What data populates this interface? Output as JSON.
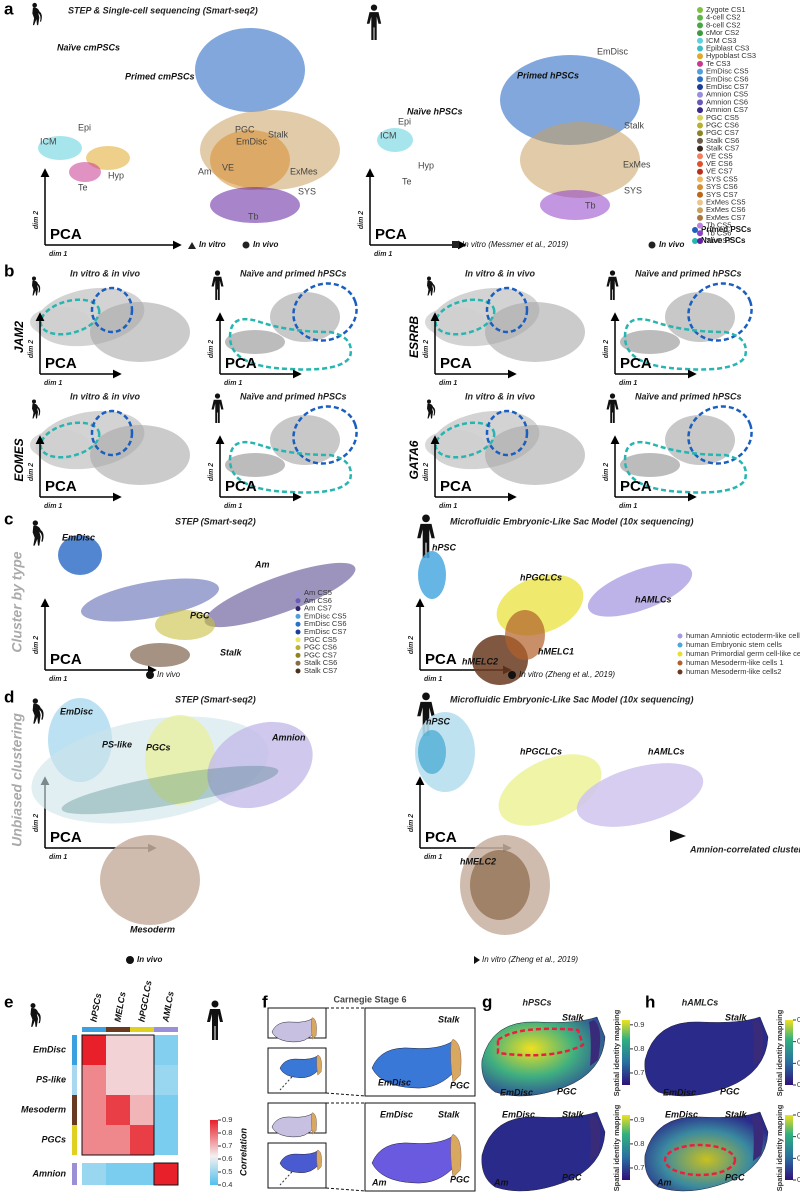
{
  "panel_a": {
    "letter": "a",
    "title": "STEP & Single-cell sequencing (Smart-seq2)",
    "left_labels": [
      "Naïve cmPSCs",
      "Primed cmPSCs",
      "EmDisc",
      "Epi",
      "ICM",
      "Hyp",
      "Te",
      "PGC",
      "Stalk",
      "Am",
      "VE",
      "ExMes",
      "SYS",
      "Tb"
    ],
    "right_labels": [
      "Naïve hPSCs",
      "Primed hPSCs",
      "EmDisc",
      "Epi",
      "ICM",
      "Hyp",
      "Te",
      "Stalk",
      "ExMes",
      "SYS",
      "Tb"
    ],
    "method": "PCA",
    "x_label": "dim 1",
    "y_label": "dim 2",
    "left_key": [
      "In vitro",
      "In vivo"
    ],
    "right_key": [
      "In vitro (Messmer et al., 2019)",
      "In vivo"
    ],
    "psc_legend": [
      {
        "name": "Primed PSCs",
        "color": "#1f5fbf"
      },
      {
        "name": "Naïve PSCs",
        "color": "#26b5b0"
      }
    ],
    "stage_legend": [
      {
        "name": "Zygote CS1",
        "color": "#7dc142"
      },
      {
        "name": "4-cell CS2",
        "color": "#5fb846"
      },
      {
        "name": "8-cell CS2",
        "color": "#48a845"
      },
      {
        "name": "cMor CS2",
        "color": "#3e9a3f"
      },
      {
        "name": "ICM CS3",
        "color": "#5fd0dc"
      },
      {
        "name": "Epiblast CS3",
        "color": "#3fbcc4"
      },
      {
        "name": "Hypoblast CS3",
        "color": "#e0a92a"
      },
      {
        "name": "Te CS3",
        "color": "#c7388f"
      },
      {
        "name": "EmDisc CS5",
        "color": "#4ea0e0"
      },
      {
        "name": "EmDisc CS6",
        "color": "#2a6fc8"
      },
      {
        "name": "EmDisc CS7",
        "color": "#1a3d9a"
      },
      {
        "name": "Amnion CS5",
        "color": "#9a90d8"
      },
      {
        "name": "Amnion CS6",
        "color": "#6a5ab8"
      },
      {
        "name": "Amnion CS7",
        "color": "#3a2a8a"
      },
      {
        "name": "PGC CS5",
        "color": "#d8d45a"
      },
      {
        "name": "PGC CS6",
        "color": "#b8b030"
      },
      {
        "name": "PGC CS7",
        "color": "#8a8520"
      },
      {
        "name": "Stalk CS6",
        "color": "#6a5a48"
      },
      {
        "name": "Stalk CS7",
        "color": "#3a2a1e"
      },
      {
        "name": "VE CS5",
        "color": "#f08060"
      },
      {
        "name": "VE CS6",
        "color": "#e0502a"
      },
      {
        "name": "VE CS7",
        "color": "#b83018"
      },
      {
        "name": "SYS CS5",
        "color": "#f0b860"
      },
      {
        "name": "SYS CS6",
        "color": "#d89030"
      },
      {
        "name": "SYS CS7",
        "color": "#b86818"
      },
      {
        "name": "ExMes CS5",
        "color": "#e8c890"
      },
      {
        "name": "ExMes CS6",
        "color": "#c8a060"
      },
      {
        "name": "ExMes CS7",
        "color": "#a87840"
      },
      {
        "name": "Tb CS5",
        "color": "#c080e0"
      },
      {
        "name": "Tb CS6",
        "color": "#9040c8"
      },
      {
        "name": "Tb CS7",
        "color": "#6020a0"
      }
    ]
  },
  "panel_b": {
    "letter": "b",
    "genes": [
      "JAM2",
      "ESRRB",
      "EOMES",
      "GATA6"
    ],
    "left_subtitle": "In vitro & in vivo",
    "right_subtitle": "Naïve and primed hPSCs"
  },
  "panel_c": {
    "letter": "c",
    "side_label": "Cluster by type",
    "left_title": "STEP (Smart-seq2)",
    "left_labels": [
      "EmDisc",
      "Am",
      "PGC",
      "Stalk"
    ],
    "left_legend": [
      {
        "name": "Am CS5",
        "color": "#9a90d8"
      },
      {
        "name": "Am CS6",
        "color": "#6a5ab8"
      },
      {
        "name": "Am CS7",
        "color": "#2e2470"
      },
      {
        "name": "EmDisc CS5",
        "color": "#4ea0e0"
      },
      {
        "name": "EmDisc CS6",
        "color": "#2a6fc8"
      },
      {
        "name": "EmDisc CS7",
        "color": "#1a3d9a"
      },
      {
        "name": "PGC CS5",
        "color": "#e8e860"
      },
      {
        "name": "PGC CS6",
        "color": "#b8b030"
      },
      {
        "name": "PGC CS7",
        "color": "#8a8520"
      },
      {
        "name": "Stalk CS6",
        "color": "#8a6a48"
      },
      {
        "name": "Stalk CS7",
        "color": "#4a321e"
      }
    ],
    "left_key": "In vivo",
    "right_title": "Microfluidic Embryonic-Like Sac Model (10x sequencing)",
    "right_labels": [
      "hPSC",
      "hPGCLCs",
      "hAMLCs",
      "hMELC2",
      "hMELC1"
    ],
    "right_legend": [
      {
        "name": "human Amniotic ectoderm-like cells",
        "color": "#a89ae0"
      },
      {
        "name": "human Embryonic stem cells",
        "color": "#4aa8e0"
      },
      {
        "name": "human Primordial germ cell-like cells",
        "color": "#e8e030"
      },
      {
        "name": "human Mesoderm-like cells 1",
        "color": "#b0602a"
      },
      {
        "name": "human Mesoderm-like cells2",
        "color": "#6a3a20"
      }
    ],
    "right_key": "In vitro (Zheng et al., 2019)"
  },
  "panel_d": {
    "letter": "d",
    "side_label": "Unbiased clustering",
    "left_title": "STEP (Smart-seq2)",
    "left_labels": [
      "EmDisc",
      "PS-like",
      "PGCs",
      "Amnion",
      "Mesoderm"
    ],
    "left_key": "In vivo",
    "right_title": "Microfluidic Embryonic-Like Sac Model (10x sequencing)",
    "right_labels": [
      "hPSC",
      "hPGCLCs",
      "hAMLCs",
      "hMELC2"
    ],
    "annotation": "Amnion-correlated cluster",
    "right_key": "In vitro (Zheng et al., 2019)"
  },
  "panel_e": {
    "letter": "e",
    "columns": [
      "hPSCs",
      "MELCs",
      "hPGCLCs",
      "AMLCs"
    ],
    "rows": [
      "EmDisc",
      "PS-like",
      "Mesoderm",
      "PGCs",
      "Amnion"
    ],
    "values": [
      [
        0.9,
        0.66,
        0.66,
        0.47
      ],
      [
        0.76,
        0.66,
        0.66,
        0.5
      ],
      [
        0.76,
        0.86,
        0.7,
        0.46
      ],
      [
        0.76,
        0.76,
        0.86,
        0.46
      ],
      [
        0.5,
        0.46,
        0.46,
        0.9
      ]
    ],
    "colorbar_label": "Correlation",
    "clim": [
      0.4,
      0.9
    ],
    "cticks": [
      0.4,
      0.5,
      0.6,
      0.7,
      0.8,
      0.9
    ]
  },
  "panel_f": {
    "letter": "f",
    "title": "Carnegie Stage 6",
    "top_labels": [
      "Stalk",
      "EmDisc",
      "PGC"
    ],
    "bottom_labels": [
      "EmDisc",
      "Stalk",
      "Am",
      "PGC"
    ]
  },
  "panel_g": {
    "letter": "g",
    "title": "hPSCs",
    "top_labels": [
      "Stalk",
      "EmDisc",
      "PGC"
    ],
    "bottom_labels": [
      "EmDisc",
      "Stalk",
      "Am",
      "PGC"
    ],
    "colorbar_label": "Spatial identity mapping",
    "clim": [
      0.65,
      0.92
    ],
    "cticks": [
      0.7,
      0.8,
      0.9
    ]
  },
  "panel_h": {
    "letter": "h",
    "title": "hAMLCs",
    "top_labels": [
      "Stalk",
      "EmDisc",
      "PGC"
    ],
    "bottom_labels": [
      "EmDisc",
      "Stalk",
      "Am",
      "PGC"
    ],
    "colorbar_label": "Spatial identity mapping",
    "clim": [
      0.65,
      0.8
    ],
    "cticks": [
      0.65,
      0.7,
      0.75,
      0.8
    ]
  }
}
